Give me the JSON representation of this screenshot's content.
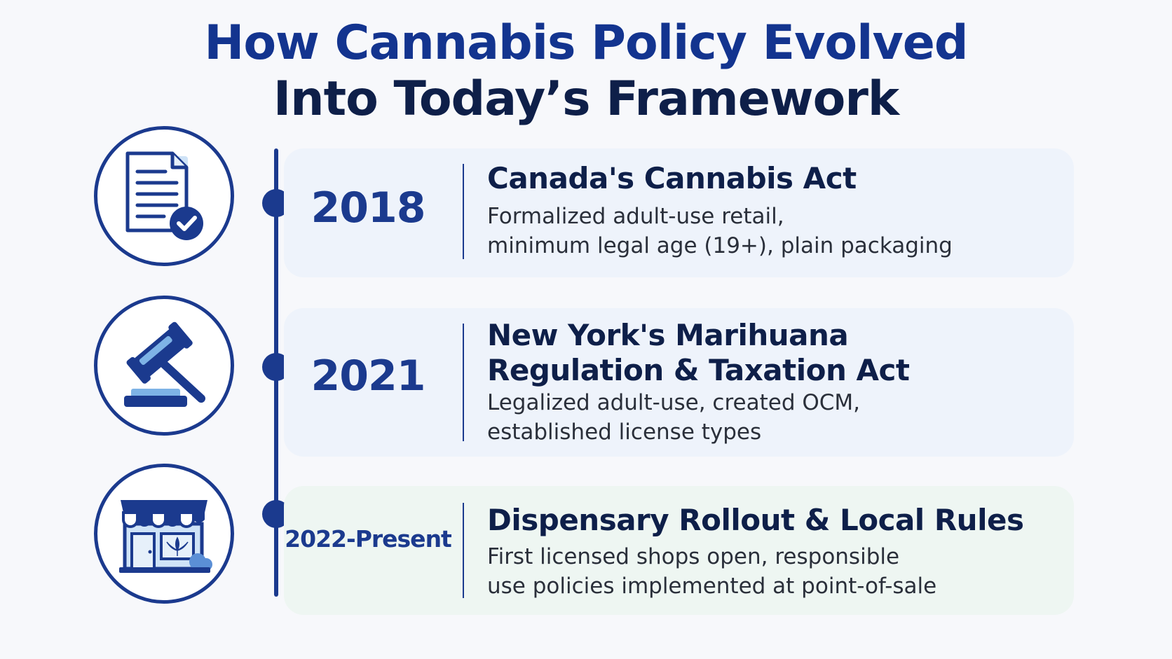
{
  "title": {
    "line1": "How Cannabis Policy Evolved",
    "line2": "Into Today’s Framework"
  },
  "colors": {
    "accent": "#1b3a8e",
    "title_dark": "#0e1f49",
    "card_blue": "#eef3fb",
    "card_green": "#eef6f2",
    "icon_light": "#7eb3e6"
  },
  "events": [
    {
      "year": "2018",
      "icon": "document-check-icon",
      "heading": "Canada's Cannabis Act",
      "desc_line1": "Formalized adult-use retail,",
      "desc_line2": "minimum legal age (19+), plain packaging"
    },
    {
      "year": "2021",
      "icon": "gavel-icon",
      "heading_line1": "New York's Marihuana",
      "heading_line2": "Regulation & Taxation Act",
      "desc_line1": "Legalized adult-use, created OCM,",
      "desc_line2": "established license types"
    },
    {
      "year": "2022-Present",
      "icon": "dispensary-storefront-icon",
      "heading": "Dispensary Rollout & Local Rules",
      "desc_line1": "First licensed shops open, responsible",
      "desc_line2": "use policies implemented at point-of-sale"
    }
  ]
}
